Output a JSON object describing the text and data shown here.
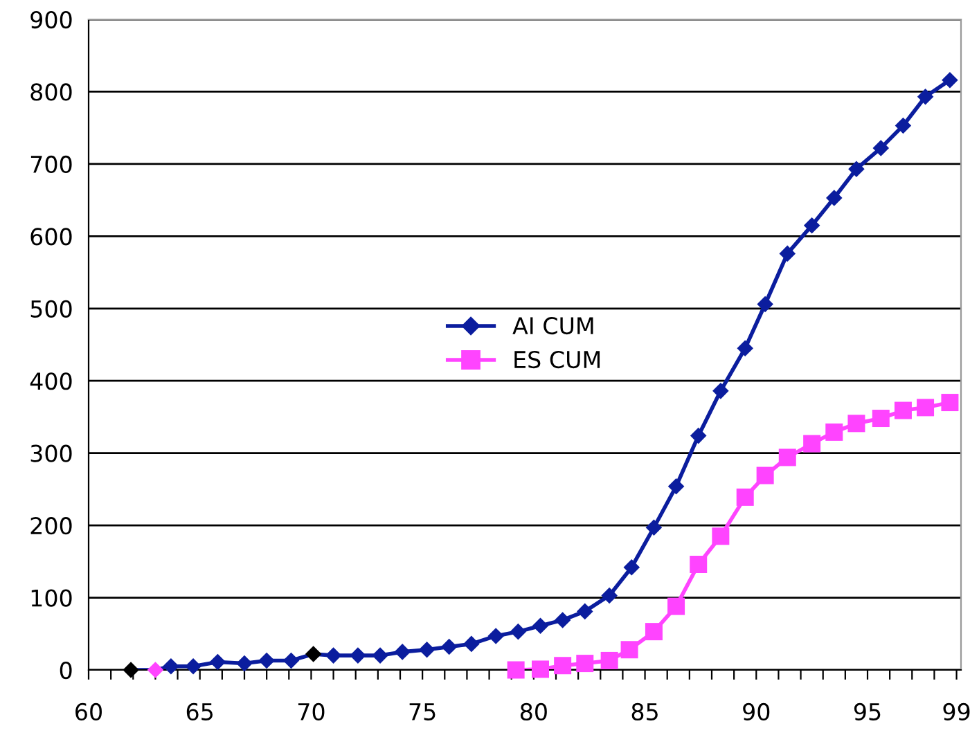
{
  "chart_data": {
    "type": "line",
    "xlim": [
      60,
      99.2
    ],
    "ylim": [
      0,
      900
    ],
    "xticks": [
      60,
      {
        "value": 61,
        "label": null
      },
      {
        "value": 62,
        "label": null
      },
      {
        "value": 63,
        "label": null
      },
      {
        "value": 64,
        "label": null
      },
      65,
      {
        "value": 66,
        "label": null
      },
      {
        "value": 67,
        "label": null
      },
      {
        "value": 68,
        "label": null
      },
      {
        "value": 69,
        "label": null
      },
      70,
      {
        "value": 71,
        "label": null
      },
      {
        "value": 72,
        "label": null
      },
      {
        "value": 73,
        "label": null
      },
      {
        "value": 74,
        "label": null
      },
      75,
      {
        "value": 76,
        "label": null
      },
      {
        "value": 77,
        "label": null
      },
      {
        "value": 78,
        "label": null
      },
      {
        "value": 79,
        "label": null
      },
      80,
      {
        "value": 81,
        "label": null
      },
      {
        "value": 82,
        "label": null
      },
      {
        "value": 83,
        "label": null
      },
      {
        "value": 84,
        "label": null
      },
      85,
      {
        "value": 86,
        "label": null
      },
      {
        "value": 87,
        "label": null
      },
      {
        "value": 88,
        "label": null
      },
      {
        "value": 89,
        "label": null
      },
      90,
      {
        "value": 91,
        "label": null
      },
      {
        "value": 92,
        "label": null
      },
      {
        "value": 93,
        "label": null
      },
      {
        "value": 94,
        "label": null
      },
      95,
      {
        "value": 96,
        "label": null
      },
      {
        "value": 97,
        "label": null
      },
      {
        "value": 98,
        "label": null
      },
      99
    ],
    "yticks": [
      0,
      100,
      200,
      300,
      400,
      500,
      600,
      700,
      800,
      900
    ],
    "grid": "y",
    "legend": "center",
    "line_style": "solid",
    "series": [
      {
        "name": "AI CUM",
        "color": "#0b1d9e",
        "marker": "diamond",
        "x": [
          61.9,
          63.0,
          63.7,
          64.7,
          65.8,
          67.0,
          68.0,
          69.1,
          70.1,
          71.0,
          72.1,
          73.1,
          74.1,
          75.2,
          76.2,
          77.2,
          78.3,
          79.3,
          80.3,
          81.3,
          82.3,
          83.4,
          84.4,
          85.4,
          86.4,
          87.4,
          88.4,
          89.5,
          90.4,
          91.4,
          92.5,
          93.5,
          94.5,
          95.6,
          96.6,
          97.6,
          98.7
        ],
        "values": [
          0,
          0,
          5,
          5,
          11,
          9,
          13,
          13,
          22,
          20,
          20,
          20,
          25,
          28,
          32,
          36,
          47,
          53,
          61,
          69,
          81,
          103,
          142,
          197,
          254,
          324,
          386,
          445,
          506,
          576,
          615,
          653,
          693,
          722,
          753,
          793,
          816
        ],
        "colors": [
          "#000000",
          "#ff44ff",
          "#0b1d9e",
          "#0b1d9e",
          "#0b1d9e",
          "#0b1d9e",
          "#0b1d9e",
          "#0b1d9e",
          "#000000",
          "#0b1d9e",
          "#0b1d9e",
          "#0b1d9e",
          "#0b1d9e",
          "#0b1d9e",
          "#0b1d9e",
          "#0b1d9e",
          "#0b1d9e",
          "#0b1d9e",
          "#0b1d9e",
          "#0b1d9e",
          "#0b1d9e",
          "#0b1d9e",
          "#0b1d9e",
          "#0b1d9e",
          "#0b1d9e",
          "#0b1d9e",
          "#0b1d9e",
          "#0b1d9e",
          "#0b1d9e",
          "#0b1d9e",
          "#0b1d9e",
          "#0b1d9e",
          "#0b1d9e",
          "#0b1d9e",
          "#0b1d9e",
          "#0b1d9e",
          "#0b1d9e"
        ]
      },
      {
        "name": "ES CUM",
        "color": "#ff44ff",
        "marker": "square",
        "x": [
          79.2,
          80.3,
          81.3,
          82.3,
          83.4,
          84.3,
          85.4,
          86.4,
          87.4,
          88.4,
          89.5,
          90.4,
          91.4,
          92.5,
          93.5,
          94.5,
          95.6,
          96.6,
          97.6,
          98.7
        ],
        "values": [
          0,
          1,
          6,
          9,
          13,
          28,
          53,
          88,
          146,
          185,
          239,
          269,
          294,
          313,
          329,
          341,
          348,
          359,
          363,
          370
        ]
      }
    ]
  }
}
